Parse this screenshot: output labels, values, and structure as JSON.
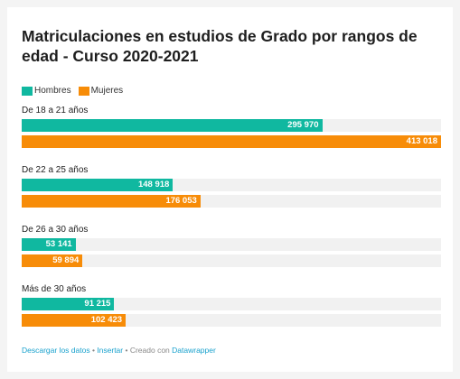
{
  "colors": {
    "hombres": "#10b8a0",
    "mujeres": "#f78c08",
    "track": "#f1f1f1"
  },
  "footer": {
    "download": "Descargar los datos",
    "sep1": " • ",
    "embed": "Insertar",
    "sep2": " • Creado con ",
    "brand": "Datawrapper"
  },
  "chart_data": {
    "type": "bar",
    "title": "Matriculaciones en estudios de Grado por rangos de edad - Curso 2020-2021",
    "xlim": [
      0,
      413018
    ],
    "legend": "top-left",
    "categories": [
      "De 18 a 21 años",
      "De 22 a 25 años",
      "De 26 a 30 años",
      "Más de 30 años"
    ],
    "series": [
      {
        "name": "Hombres",
        "values": [
          295970,
          148918,
          53141,
          91215
        ],
        "labels": [
          "295 970",
          "148 918",
          "53 141",
          "91 215"
        ]
      },
      {
        "name": "Mujeres",
        "values": [
          413018,
          176053,
          59894,
          102423
        ],
        "labels": [
          "413 018",
          "176 053",
          "59 894",
          "102 423"
        ]
      }
    ]
  }
}
